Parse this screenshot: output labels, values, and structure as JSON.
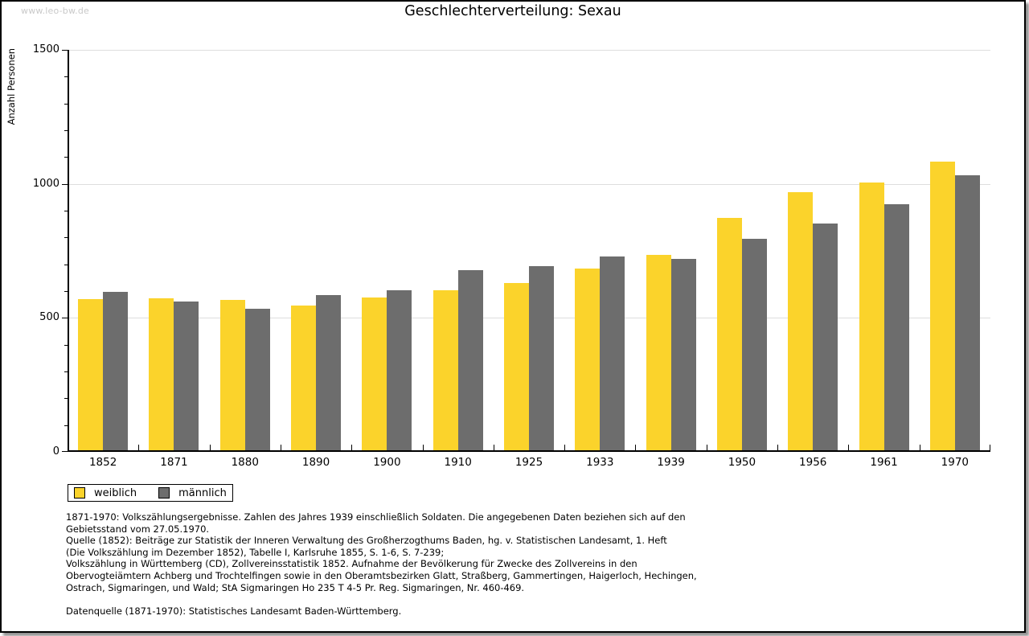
{
  "page": {
    "watermark": "www.leo-bw.de",
    "title": "Geschlechterverteilung: Sexau"
  },
  "chart_data": {
    "type": "bar",
    "title": "Geschlechterverteilung: Sexau",
    "ylabel": "Anzahl Personen",
    "xlabel": "",
    "ylim": [
      0,
      1500
    ],
    "yticks": [
      0,
      500,
      1000,
      1500
    ],
    "minor_tick_step": 100,
    "grid": "horizontal-major",
    "legend_position": "bottom-left",
    "categories": [
      "1852",
      "1871",
      "1880",
      "1890",
      "1900",
      "1910",
      "1925",
      "1933",
      "1939",
      "1950",
      "1956",
      "1961",
      "1970"
    ],
    "series": [
      {
        "name": "weiblich",
        "color": "#fbd32b",
        "values": [
          565,
          567,
          560,
          540,
          570,
          596,
          624,
          678,
          730,
          868,
          962,
          1000,
          1078
        ]
      },
      {
        "name": "männlich",
        "color": "#6d6d6d",
        "values": [
          592,
          554,
          528,
          578,
          596,
          671,
          686,
          723,
          715,
          789,
          846,
          917,
          1025
        ]
      }
    ],
    "colors": {
      "weiblich": "#fbd32b",
      "männlich": "#6d6d6d",
      "gridline": "#dedede",
      "watermark": "#c9c9c9"
    }
  },
  "footnote": {
    "lines": [
      "1871-1970: Volkszählungsergebnisse. Zahlen des Jahres 1939 einschließlich Soldaten. Die angegebenen Daten beziehen sich auf den",
      "Gebietsstand vom 27.05.1970.",
      "Quelle (1852): Beiträge zur Statistik der Inneren Verwaltung des Großherzogthums Baden, hg. v. Statistischen Landesamt, 1. Heft",
      "(Die Volkszählung im Dezember 1852), Tabelle I, Karlsruhe 1855, S. 1-6, S. 7-239;",
      "Volkszählung in Württemberg (CD), Zollvereinsstatistik 1852. Aufnahme der Bevölkerung für Zwecke des Zollvereins in den",
      "Obervogteiämtern Achberg und Trochtelfingen sowie in den Oberamtsbezirken Glatt, Straßberg, Gammertingen, Haigerloch, Hechingen,",
      "Ostrach, Sigmaringen, und Wald; StA Sigmaringen Ho 235 T 4-5 Pr. Reg. Sigmaringen, Nr. 460-469."
    ],
    "datasource": "Datenquelle (1871-1970): Statistisches Landesamt Baden-Württemberg."
  }
}
